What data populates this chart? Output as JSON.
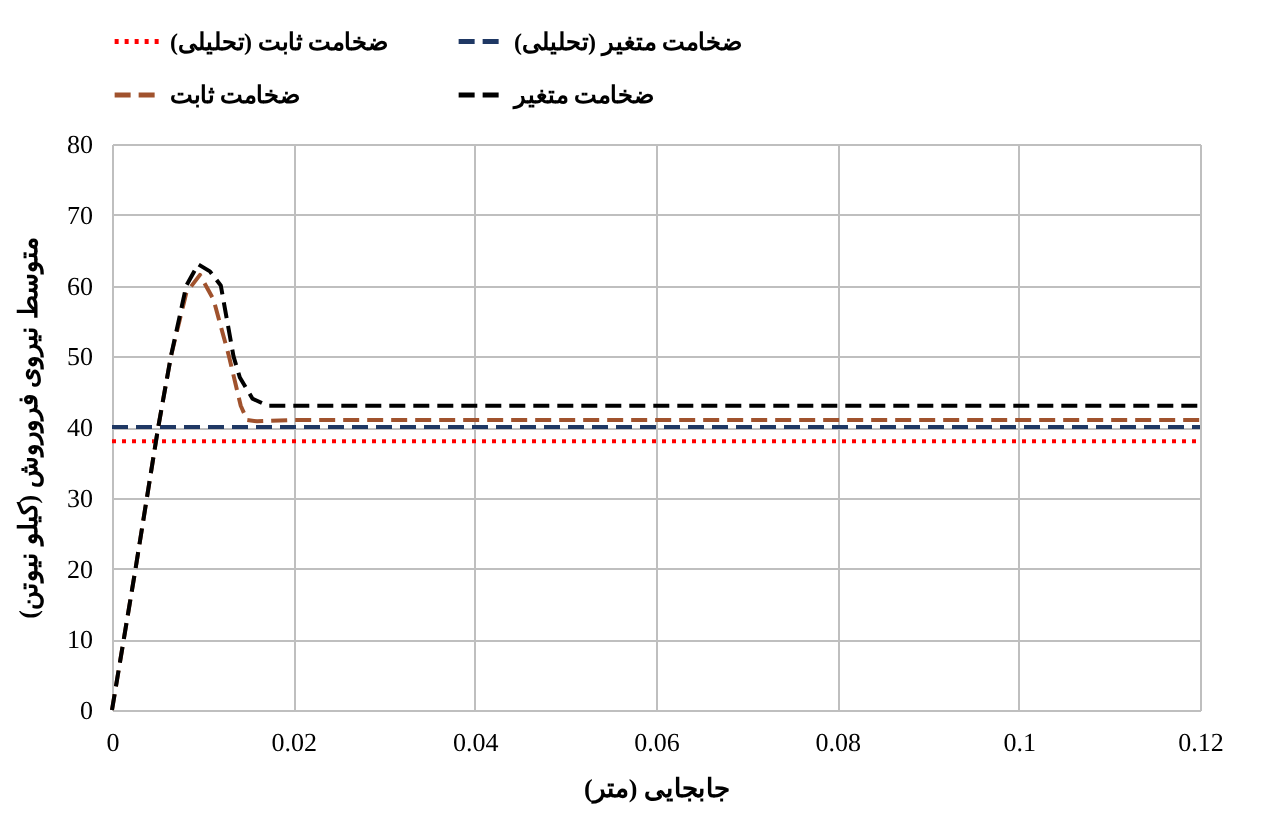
{
  "chart_data": {
    "type": "line",
    "xlabel": "جابجایی (متر)",
    "ylabel": "متوسط نیروی فروروش (کیلو نیوتن)",
    "xlim": [
      0,
      0.12
    ],
    "xticks": [
      0,
      0.02,
      0.04,
      0.06,
      0.08,
      0.1,
      0.12
    ],
    "ylim": [
      0,
      80
    ],
    "yticks": [
      0,
      10,
      20,
      30,
      40,
      50,
      60,
      70,
      80
    ],
    "grid": true,
    "legend": "top",
    "series": [
      {
        "name": "ضخامت ثابت (تحلیلی)",
        "color": "#ff0000",
        "line_style": "dotted",
        "x": [
          0,
          0.12
        ],
        "values": [
          38,
          38
        ]
      },
      {
        "name": "ضخامت متغیر (تحلیلی)",
        "color": "#1f3864",
        "line_style": "dashed",
        "x": [
          0,
          0.12
        ],
        "values": [
          40,
          40
        ]
      },
      {
        "name": "ضخامت ثابت",
        "color": "#a0522d",
        "line_style": "dashed",
        "x": [
          0,
          0.0026,
          0.0051,
          0.0065,
          0.0082,
          0.0097,
          0.0112,
          0.0129,
          0.0142,
          0.0149,
          0.016,
          0.02,
          0.04,
          0.06,
          0.08,
          0.1,
          0.12
        ],
        "values": [
          0,
          20,
          40,
          50,
          59,
          61.5,
          58,
          50,
          43,
          41,
          40.8,
          41,
          41,
          41,
          41,
          41,
          41
        ]
      },
      {
        "name": "ضخامت متغیر",
        "color": "#000000",
        "line_style": "dashed",
        "x": [
          0,
          0.0026,
          0.0051,
          0.0065,
          0.0082,
          0.0095,
          0.0108,
          0.012,
          0.0134,
          0.0141,
          0.0155,
          0.0172,
          0.02,
          0.04,
          0.06,
          0.08,
          0.1,
          0.12
        ],
        "values": [
          0,
          20,
          40,
          50,
          60,
          63,
          62,
          60,
          50,
          47,
          44,
          43,
          43,
          43,
          43,
          43,
          43,
          43
        ]
      }
    ]
  }
}
